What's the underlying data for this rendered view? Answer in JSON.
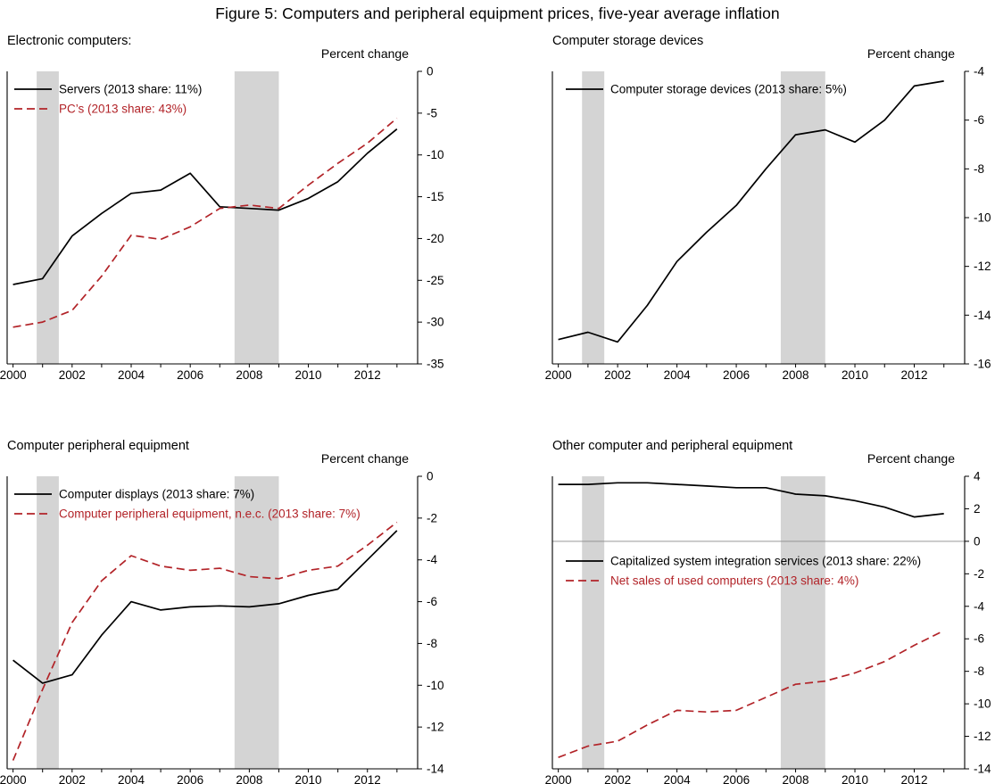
{
  "figure": {
    "title": "Figure 5: Computers and peripheral equipment prices, five-year average inflation"
  },
  "colors": {
    "black_series": "#000000",
    "red_series": "#b22328",
    "recession_band": "#d4d4d4",
    "zero_line": "#8a8a8a"
  },
  "chart_data": [
    {
      "type": "line",
      "title": "Electronic computers:",
      "ylabel": "Percent change",
      "x": [
        2000,
        2001,
        2002,
        2003,
        2004,
        2005,
        2006,
        2007,
        2008,
        2009,
        2010,
        2011,
        2012,
        2013
      ],
      "xlim": [
        1999.8,
        2013.7
      ],
      "ylim": [
        -35,
        0
      ],
      "yticks": [
        0,
        -5,
        -10,
        -15,
        -20,
        -25,
        -30,
        -35
      ],
      "xticks": [
        2000,
        2002,
        2004,
        2006,
        2008,
        2010,
        2012
      ],
      "grid": false,
      "zero_line": false,
      "legend_position": "top-left",
      "recession_bands": [
        [
          2000.8,
          2001.55
        ],
        [
          2007.5,
          2009.0
        ]
      ],
      "series": [
        {
          "name": "Servers (2013 share: 11%)",
          "color": "#000000",
          "dash": false,
          "values": [
            -25.5,
            -24.8,
            -19.7,
            -17.0,
            -14.6,
            -14.2,
            -12.2,
            -16.2,
            -16.4,
            -16.6,
            -15.2,
            -13.2,
            -9.8,
            -6.9
          ]
        },
        {
          "name": "PC’s (2013 share: 43%)",
          "color": "#b22328",
          "dash": true,
          "values": [
            -30.6,
            -30.0,
            -28.6,
            -24.5,
            -19.6,
            -20.1,
            -18.6,
            -16.4,
            -16.0,
            -16.4,
            -13.6,
            -11.0,
            -8.6,
            -5.6
          ]
        }
      ]
    },
    {
      "type": "line",
      "title": "Computer storage devices",
      "ylabel": "Percent change",
      "x": [
        2000,
        2001,
        2002,
        2003,
        2004,
        2005,
        2006,
        2007,
        2008,
        2009,
        2010,
        2011,
        2012,
        2013
      ],
      "xlim": [
        1999.8,
        2013.7
      ],
      "ylim": [
        -16,
        -4
      ],
      "yticks": [
        -4,
        -6,
        -8,
        -10,
        -12,
        -14,
        -16
      ],
      "xticks": [
        2000,
        2002,
        2004,
        2006,
        2008,
        2010,
        2012
      ],
      "grid": false,
      "zero_line": false,
      "legend_position": "top-left",
      "recession_bands": [
        [
          2000.8,
          2001.55
        ],
        [
          2007.5,
          2009.0
        ]
      ],
      "series": [
        {
          "name": "Computer storage devices (2013 share: 5%)",
          "color": "#000000",
          "dash": false,
          "values": [
            -15.0,
            -14.7,
            -15.1,
            -13.6,
            -11.8,
            -10.6,
            -9.5,
            -8.0,
            -6.6,
            -6.4,
            -6.9,
            -6.0,
            -4.6,
            -4.4
          ]
        }
      ]
    },
    {
      "type": "line",
      "title": "Computer peripheral equipment",
      "ylabel": "Percent change",
      "x": [
        2000,
        2001,
        2002,
        2003,
        2004,
        2005,
        2006,
        2007,
        2008,
        2009,
        2010,
        2011,
        2012,
        2013
      ],
      "xlim": [
        1999.8,
        2013.7
      ],
      "ylim": [
        -14,
        0
      ],
      "yticks": [
        0,
        -2,
        -4,
        -6,
        -8,
        -10,
        -12,
        -14
      ],
      "xticks": [
        2000,
        2002,
        2004,
        2006,
        2008,
        2010,
        2012
      ],
      "grid": false,
      "zero_line": false,
      "legend_position": "top-left",
      "recession_bands": [
        [
          2000.8,
          2001.55
        ],
        [
          2007.5,
          2009.0
        ]
      ],
      "series": [
        {
          "name": "Computer displays (2013 share: 7%)",
          "color": "#000000",
          "dash": false,
          "values": [
            -8.8,
            -9.9,
            -9.5,
            -7.6,
            -6.0,
            -6.4,
            -6.25,
            -6.2,
            -6.25,
            -6.1,
            -5.7,
            -5.4,
            -4.0,
            -2.6
          ]
        },
        {
          "name": "Computer peripheral equipment, n.e.c. (2013 share: 7%)",
          "color": "#b22328",
          "dash": true,
          "values": [
            -13.6,
            -10.2,
            -7.0,
            -5.0,
            -3.8,
            -4.3,
            -4.5,
            -4.4,
            -4.8,
            -4.9,
            -4.5,
            -4.3,
            -3.3,
            -2.2
          ]
        }
      ]
    },
    {
      "type": "line",
      "title": "Other computer and peripheral equipment",
      "ylabel": "Percent change",
      "x": [
        2000,
        2001,
        2002,
        2003,
        2004,
        2005,
        2006,
        2007,
        2008,
        2009,
        2010,
        2011,
        2012,
        2013
      ],
      "xlim": [
        1999.8,
        2013.7
      ],
      "ylim": [
        -14,
        4
      ],
      "yticks": [
        4,
        2,
        0,
        -2,
        -4,
        -6,
        -8,
        -10,
        -12,
        -14
      ],
      "xticks": [
        2000,
        2002,
        2004,
        2006,
        2008,
        2010,
        2012
      ],
      "grid": false,
      "zero_line": true,
      "legend_position": "middle-left",
      "recession_bands": [
        [
          2000.8,
          2001.55
        ],
        [
          2007.5,
          2009.0
        ]
      ],
      "series": [
        {
          "name": "Capitalized system integration services (2013 share: 22%)",
          "color": "#000000",
          "dash": false,
          "values": [
            3.5,
            3.5,
            3.6,
            3.6,
            3.5,
            3.4,
            3.3,
            3.3,
            2.9,
            2.8,
            2.5,
            2.1,
            1.5,
            1.7
          ]
        },
        {
          "name": "Net sales of used computers (2013 share: 4%)",
          "color": "#b22328",
          "dash": true,
          "values": [
            -13.3,
            -12.6,
            -12.3,
            -11.3,
            -10.4,
            -10.5,
            -10.4,
            -9.6,
            -8.8,
            -8.6,
            -8.1,
            -7.4,
            -6.4,
            -5.5
          ]
        }
      ]
    }
  ]
}
